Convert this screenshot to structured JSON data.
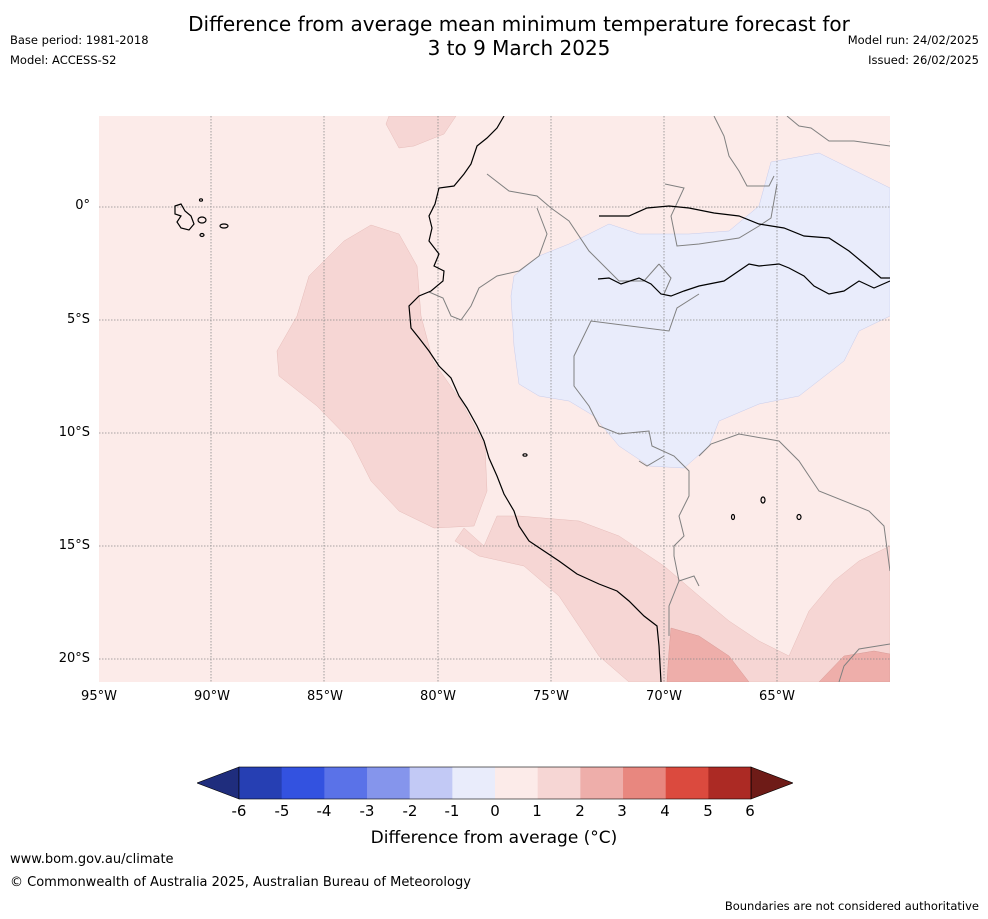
{
  "header": {
    "title_line1": "Difference from average mean minimum temperature forecast for",
    "title_line2": "3 to 9 March 2025",
    "base_period": "Base period: 1981-2018",
    "model": "Model: ACCESS-S2",
    "model_run": "Model run: 24/02/2025",
    "issued": "Issued: 26/02/2025"
  },
  "map": {
    "lat_labels": [
      "0°",
      "5°S",
      "10°S",
      "15°S",
      "20°S"
    ],
    "lon_labels": [
      "95°W",
      "90°W",
      "85°W",
      "80°W",
      "75°W",
      "70°W",
      "65°W"
    ],
    "colors": {
      "bin_0_1": "#fcebe9",
      "bin_1_2": "#f6d6d4",
      "bin_2_3": "#eeaeaa",
      "bin_m1_0": "#e9ecfb"
    }
  },
  "colorbar": {
    "ticks": [
      "-6",
      "-5",
      "-4",
      "-3",
      "-2",
      "-1",
      "0",
      "1",
      "2",
      "3",
      "4",
      "5",
      "6"
    ],
    "colors": [
      "#1f2d7d",
      "#263fb3",
      "#3352e0",
      "#5a72e8",
      "#8595ec",
      "#c2c9f5",
      "#e9ecfb",
      "#fcebe9",
      "#f6d6d4",
      "#eeaeaa",
      "#e8877f",
      "#db4a3e",
      "#ac2a24",
      "#6e1b17"
    ],
    "label": "Difference from average (°C)"
  },
  "footer": {
    "url": "www.bom.gov.au/climate",
    "copyright": "© Commonwealth of Australia 2025, Australian Bureau of Meteorology",
    "disclaimer": "Boundaries are not considered authoritative"
  }
}
